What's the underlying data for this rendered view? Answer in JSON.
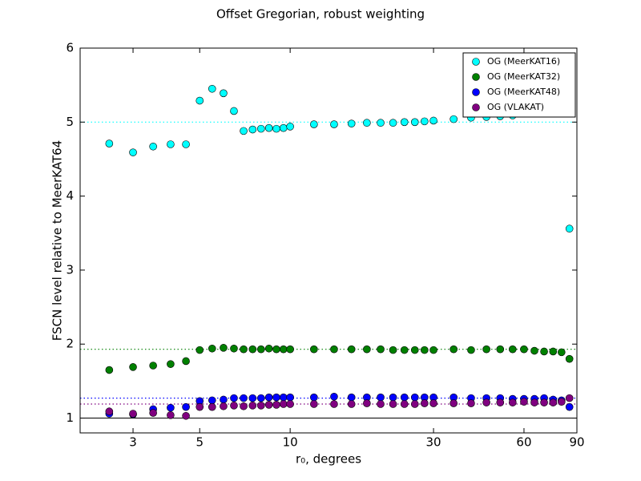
{
  "chart_data": {
    "type": "scatter",
    "title": "Offset Gregorian, robust weighting",
    "x_label": "r₀, degrees",
    "y_label": "FSCN level relative to MeerKAT64",
    "x_scale": "log",
    "xlim": [
      2,
      90
    ],
    "xticks": [
      3,
      5,
      10,
      30,
      60,
      90
    ],
    "ylim": [
      0.8,
      6
    ],
    "yticks": [
      1,
      2,
      3,
      4,
      5,
      6
    ],
    "legend": "upper right",
    "x": [
      2.5,
      3,
      3.5,
      4,
      4.5,
      5,
      5.5,
      6,
      6.5,
      7,
      7.5,
      8,
      8.5,
      9,
      9.5,
      10,
      12,
      14,
      16,
      18,
      20,
      22,
      24,
      26,
      28,
      30,
      35,
      40,
      45,
      50,
      55,
      60,
      65,
      70,
      75,
      80,
      85
    ],
    "series": [
      {
        "name": "OG (MeerKAT16)",
        "color": "#00ffff",
        "values": [
          4.71,
          4.59,
          4.67,
          4.7,
          4.7,
          5.29,
          5.45,
          5.39,
          5.15,
          4.88,
          4.9,
          4.91,
          4.92,
          4.91,
          4.92,
          4.94,
          4.97,
          4.97,
          4.98,
          4.99,
          4.99,
          4.99,
          5.0,
          5.0,
          5.01,
          5.02,
          5.04,
          5.06,
          5.07,
          5.08,
          5.09,
          5.13,
          5.14,
          5.15,
          5.16,
          5.17,
          3.56
        ]
      },
      {
        "name": "OG (MeerKAT32)",
        "color": "#008000",
        "values": [
          1.65,
          1.69,
          1.71,
          1.73,
          1.77,
          1.92,
          1.94,
          1.95,
          1.94,
          1.93,
          1.93,
          1.93,
          1.94,
          1.93,
          1.93,
          1.93,
          1.93,
          1.93,
          1.93,
          1.93,
          1.93,
          1.92,
          1.92,
          1.92,
          1.92,
          1.92,
          1.93,
          1.92,
          1.93,
          1.93,
          1.93,
          1.93,
          1.91,
          1.9,
          1.9,
          1.89,
          1.8
        ]
      },
      {
        "name": "OG (MeerKAT48)",
        "color": "#0000ff",
        "values": [
          1.06,
          1.05,
          1.12,
          1.14,
          1.15,
          1.23,
          1.24,
          1.25,
          1.27,
          1.27,
          1.27,
          1.27,
          1.28,
          1.28,
          1.28,
          1.28,
          1.28,
          1.29,
          1.28,
          1.28,
          1.28,
          1.28,
          1.28,
          1.28,
          1.28,
          1.28,
          1.28,
          1.27,
          1.27,
          1.27,
          1.26,
          1.26,
          1.26,
          1.27,
          1.25,
          1.24,
          1.15
        ]
      },
      {
        "name": "OG (VLAKAT)",
        "color": "#800080",
        "values": [
          1.09,
          1.06,
          1.07,
          1.04,
          1.03,
          1.15,
          1.15,
          1.16,
          1.17,
          1.16,
          1.17,
          1.17,
          1.18,
          1.18,
          1.19,
          1.19,
          1.19,
          1.19,
          1.19,
          1.2,
          1.19,
          1.19,
          1.19,
          1.19,
          1.2,
          1.2,
          1.2,
          1.2,
          1.21,
          1.21,
          1.21,
          1.22,
          1.21,
          1.21,
          1.21,
          1.22,
          1.27
        ]
      }
    ],
    "hlines": [
      {
        "y": 5.0,
        "color": "#00ffff",
        "style": "dotted"
      },
      {
        "y": 1.93,
        "color": "#008000",
        "style": "dotted"
      },
      {
        "y": 1.27,
        "color": "#0000ff",
        "style": "dotted"
      },
      {
        "y": 1.19,
        "color": "#800080",
        "style": "dotted"
      },
      {
        "y": 1,
        "color": "#000000",
        "style": "solid"
      }
    ]
  }
}
